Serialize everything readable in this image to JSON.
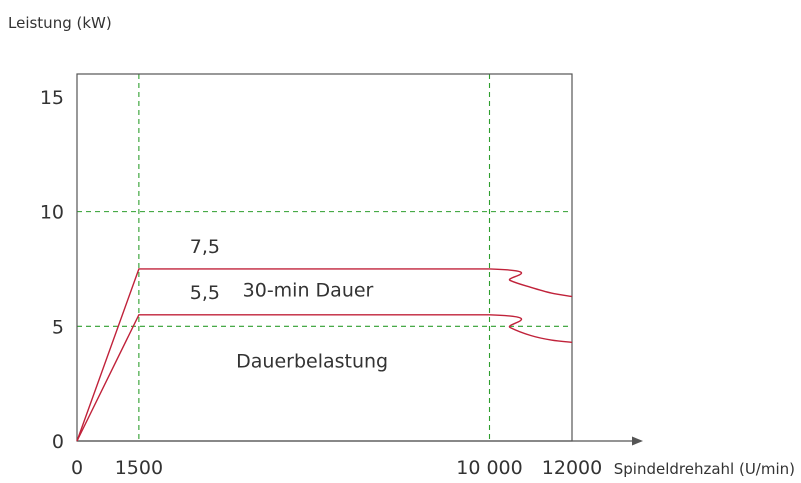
{
  "chart_data": {
    "type": "line",
    "ylabel": "Leistung (kW)",
    "xlabel": "Spindeldrehzahl (U/min)",
    "x_ticks": [
      {
        "value": 0,
        "label": "0"
      },
      {
        "value": 1500,
        "label": "1500"
      },
      {
        "value": 10000,
        "label": "10 000"
      },
      {
        "value": 12000,
        "label": "12000"
      }
    ],
    "y_ticks": [
      {
        "value": 0,
        "label": "0"
      },
      {
        "value": 5,
        "label": "5"
      },
      {
        "value": 10,
        "label": "10"
      },
      {
        "value": 15,
        "label": "15"
      }
    ],
    "xlim": [
      0,
      12000
    ],
    "ylim": [
      0,
      16.0
    ],
    "grid": {
      "x": [
        1500,
        10000
      ],
      "y": [
        5,
        10
      ]
    },
    "series": [
      {
        "name": "30-min Dauer",
        "x": [
          0,
          1500,
          10000,
          10500,
          11000,
          11500,
          12000
        ],
        "y": [
          0,
          7.5,
          7.5,
          7.0,
          6.7,
          6.45,
          6.3
        ],
        "color": "#c0223a"
      },
      {
        "name": "Dauerbelastung",
        "x": [
          0,
          1500,
          10000,
          10500,
          11000,
          11500,
          12000
        ],
        "y": [
          0,
          5.5,
          5.5,
          4.95,
          4.6,
          4.4,
          4.3
        ],
        "color": "#c0223a"
      }
    ],
    "annotations": [
      {
        "text": "7,5",
        "x": 3100,
        "y": 8.2
      },
      {
        "text": "5,5",
        "x": 3100,
        "y": 6.2
      },
      {
        "text": "30-min Dauer",
        "x": 5600,
        "y": 6.3
      },
      {
        "text": "Dauerbelastung",
        "x": 5700,
        "y": 3.2
      }
    ],
    "colors": {
      "axis": "#555555",
      "grid": "#2e9e2e",
      "line": "#c0223a"
    }
  }
}
